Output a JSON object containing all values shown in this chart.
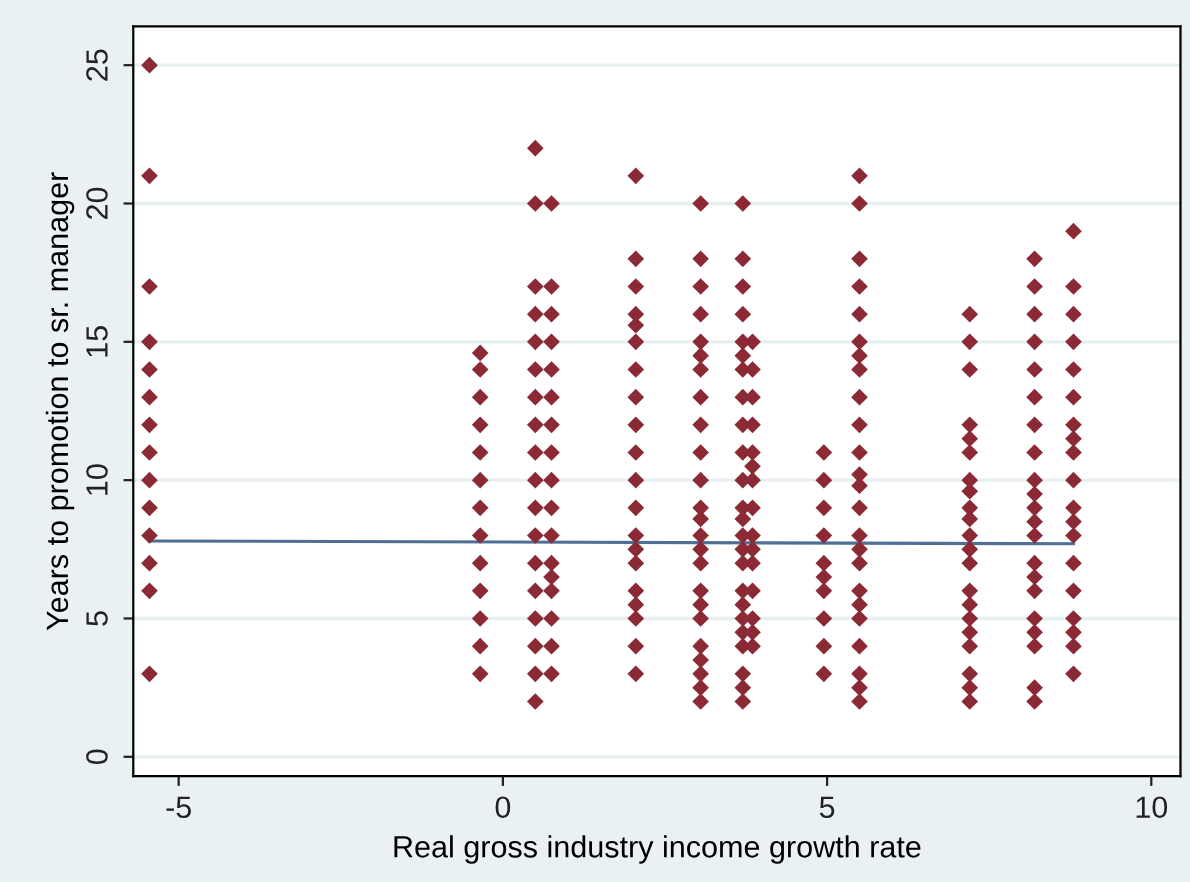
{
  "chart_data": {
    "type": "scatter",
    "xlabel": "Real gross industry income growth rate",
    "ylabel": "Years to promotion to sr. manager",
    "xlim": [
      -5.7,
      10.45
    ],
    "ylim": [
      -0.7,
      26.4
    ],
    "xticks": [
      -5,
      0,
      5,
      10
    ],
    "yticks": [
      0,
      5,
      10,
      15,
      20,
      25
    ],
    "grid": "y",
    "marker": "diamond",
    "series": [
      {
        "color": "#8b2a35",
        "x": [
          -5.45,
          -5.45,
          -5.45,
          -5.45,
          -5.45,
          -5.45,
          -5.45,
          -5.45,
          -5.45,
          -5.45,
          -5.45,
          -5.45,
          -5.45,
          -5.45
        ],
        "values": [
          25,
          21,
          17,
          15,
          14,
          13,
          12,
          11,
          10,
          9,
          8,
          7,
          6,
          3
        ]
      },
      {
        "color": "#8b2a35",
        "x": [
          -0.35,
          -0.35,
          -0.35,
          -0.35,
          -0.35,
          -0.35,
          -0.35,
          -0.35,
          -0.35,
          -0.35,
          -0.35,
          -0.35,
          -0.35
        ],
        "values": [
          14.6,
          14,
          13,
          12,
          11,
          10,
          9,
          8,
          7,
          6,
          5,
          4,
          3
        ]
      },
      {
        "color": "#8b2a35",
        "x": [
          0.5,
          0.5,
          0.5,
          0.5,
          0.5,
          0.5,
          0.5,
          0.5,
          0.5,
          0.5,
          0.5,
          0.5,
          0.5,
          0.5,
          0.5,
          0.5,
          0.5,
          0.5
        ],
        "values": [
          22,
          20,
          17,
          16,
          15,
          14,
          13,
          12,
          11,
          10,
          9,
          8,
          7,
          6,
          5,
          4,
          3,
          2
        ]
      },
      {
        "color": "#8b2a35",
        "x": [
          0.75,
          0.75,
          0.75,
          0.75,
          0.75,
          0.75,
          0.75,
          0.75,
          0.75,
          0.75,
          0.75,
          0.75,
          0.75,
          0.75,
          0.75,
          0.75,
          0.75
        ],
        "values": [
          20,
          17,
          16,
          15,
          14,
          13,
          12,
          11,
          10,
          9,
          8,
          7,
          6.5,
          6,
          5,
          4,
          3
        ]
      },
      {
        "color": "#8b2a35",
        "x": [
          2.05,
          2.05,
          2.05,
          2.05,
          2.05,
          2.05,
          2.05,
          2.05,
          2.05,
          2.05,
          2.05,
          2.05,
          2.05,
          2.05,
          2.05,
          2.05,
          2.05,
          2.05,
          2.05,
          2.05
        ],
        "values": [
          21,
          18,
          17,
          16,
          15.6,
          15,
          14,
          13,
          12,
          11,
          10,
          9,
          8,
          7.5,
          7,
          6,
          5.5,
          5,
          4,
          3
        ]
      },
      {
        "color": "#8b2a35",
        "x": [
          3.05,
          3.05,
          3.05,
          3.05,
          3.05,
          3.05,
          3.05,
          3.05,
          3.05,
          3.05,
          3.05,
          3.05,
          3.05,
          3.05,
          3.05,
          3.05,
          3.05,
          3.05,
          3.05,
          3.05,
          3.05,
          3.05,
          3.05,
          3.05
        ],
        "values": [
          20,
          18,
          17,
          16,
          15,
          14.5,
          14,
          13,
          12,
          11,
          10,
          9,
          8.6,
          8,
          7.5,
          7,
          6,
          5.5,
          5,
          4,
          3.5,
          3,
          2.5,
          2
        ]
      },
      {
        "color": "#8b2a35",
        "x": [
          3.7,
          3.7,
          3.7,
          3.7,
          3.7,
          3.7,
          3.7,
          3.7,
          3.7,
          3.7,
          3.7,
          3.7,
          3.7,
          3.7,
          3.7,
          3.7,
          3.7,
          3.7,
          3.7,
          3.7,
          3.7,
          3.7,
          3.7,
          3.7
        ],
        "values": [
          20,
          18,
          17,
          16,
          15,
          14.5,
          14,
          13,
          12,
          11,
          10,
          9,
          8.6,
          8,
          7.5,
          7,
          6,
          5.5,
          5,
          4.5,
          4,
          3,
          2.5,
          2
        ]
      },
      {
        "color": "#8b2a35",
        "x": [
          3.85,
          3.85,
          3.85,
          3.85,
          3.85,
          3.85,
          3.85,
          3.85,
          3.85,
          3.85,
          3.85,
          3.85,
          3.85,
          3.85,
          3.85
        ],
        "values": [
          15,
          14,
          13,
          12,
          11,
          10.5,
          10,
          9,
          8,
          7.5,
          7,
          6,
          5,
          4.5,
          4
        ]
      },
      {
        "color": "#8b2a35",
        "x": [
          4.95,
          4.95,
          4.95,
          4.95,
          4.95,
          4.95,
          4.95,
          4.95,
          4.95,
          4.95
        ],
        "values": [
          11,
          10,
          9,
          8,
          7,
          6.5,
          6,
          5,
          4,
          3
        ]
      },
      {
        "color": "#8b2a35",
        "x": [
          5.5,
          5.5,
          5.5,
          5.5,
          5.5,
          5.5,
          5.5,
          5.5,
          5.5,
          5.5,
          5.5,
          5.5,
          5.5,
          5.5,
          5.5,
          5.5,
          5.5,
          5.5,
          5.5,
          5.5,
          5.5,
          5.5,
          5.5,
          5.5
        ],
        "values": [
          21,
          20,
          18,
          17,
          16,
          15,
          14.5,
          14,
          13,
          12,
          11,
          10.2,
          9.8,
          9,
          8,
          7.5,
          7,
          6,
          5.5,
          5,
          4,
          3,
          2.5,
          2
        ]
      },
      {
        "color": "#8b2a35",
        "x": [
          7.2,
          7.2,
          7.2,
          7.2,
          7.2,
          7.2,
          7.2,
          7.2,
          7.2,
          7.2,
          7.2,
          7.2,
          7.2,
          7.2,
          7.2,
          7.2,
          7.2,
          7.2,
          7.2,
          7.2,
          7.2
        ],
        "values": [
          16,
          15,
          14,
          12,
          11.5,
          11,
          10,
          9.6,
          9,
          8.6,
          8,
          7.5,
          7,
          6,
          5.5,
          5,
          4.5,
          4,
          3,
          2.5,
          2
        ]
      },
      {
        "color": "#8b2a35",
        "x": [
          8.2,
          8.2,
          8.2,
          8.2,
          8.2,
          8.2,
          8.2,
          8.2,
          8.2,
          8.2,
          8.2,
          8.2,
          8.2,
          8.2,
          8.2,
          8.2,
          8.2,
          8.2,
          8.2,
          8.2,
          8.2
        ],
        "values": [
          18,
          17,
          16,
          15,
          14,
          13,
          12,
          11,
          10,
          9.5,
          9,
          8.5,
          8,
          7,
          6.5,
          6,
          5,
          4.5,
          4,
          2.5,
          2
        ]
      },
      {
        "color": "#8b2a35",
        "x": [
          8.8,
          8.8,
          8.8,
          8.8,
          8.8,
          8.8,
          8.8,
          8.8,
          8.8,
          8.8,
          8.8,
          8.8,
          8.8,
          8.8,
          8.8,
          8.8,
          8.8,
          8.8,
          8.8
        ],
        "values": [
          19,
          17,
          16,
          15,
          14,
          13,
          12,
          11.5,
          11,
          10,
          9,
          8.5,
          8,
          7,
          6,
          5,
          4.5,
          4,
          3
        ]
      },
      {
        "type": "line",
        "marker": "none",
        "color": "#4f6f95",
        "x": [
          -5.45,
          8.8
        ],
        "values": [
          7.8,
          7.7
        ]
      }
    ]
  }
}
